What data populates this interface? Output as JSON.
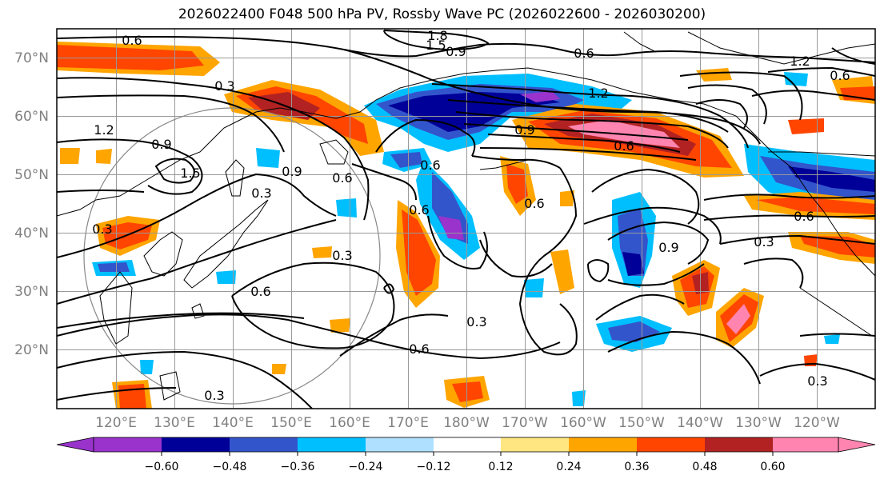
{
  "title": "2026022400 F048 500 hPa PV, Rossby Wave PC (2026022600 - 2026030200)",
  "lat_labels": [
    "70°N",
    "60°N",
    "50°N",
    "40°N",
    "30°N",
    "20°N"
  ],
  "lon_labels": [
    "120°E",
    "130°E",
    "140°E",
    "150°E",
    "160°E",
    "170°E",
    "180°W",
    "170°W",
    "160°W",
    "150°W",
    "140°W",
    "130°W",
    "120°W"
  ],
  "contour_labels": [
    "0.6",
    "1.8",
    "1.5",
    "0.9",
    "0.6",
    "1.2",
    "1.2",
    "0.3",
    "0.6",
    "1.2",
    "0.9",
    "1.5",
    "0.9",
    "0.6",
    "0.3",
    "0.6",
    "0.6",
    "0.9",
    "0.6",
    "0.9",
    "0.6",
    "0.6",
    "0.3",
    "0.6",
    "0.3",
    "0.3",
    "0.6",
    "0.3",
    "0.3",
    "0.3"
  ],
  "colorbar": {
    "ticks": [
      "−0.60",
      "−0.48",
      "−0.36",
      "−0.24",
      "−0.12",
      "0.12",
      "0.24",
      "0.36",
      "0.48",
      "0.60"
    ],
    "colors": [
      "#9933cc",
      "#000099",
      "#3355cc",
      "#00bfff",
      "#b0e0ff",
      "#ffffff",
      "#ffe680",
      "#ffa500",
      "#ff4500",
      "#b22222",
      "#ff85b0"
    ]
  }
}
